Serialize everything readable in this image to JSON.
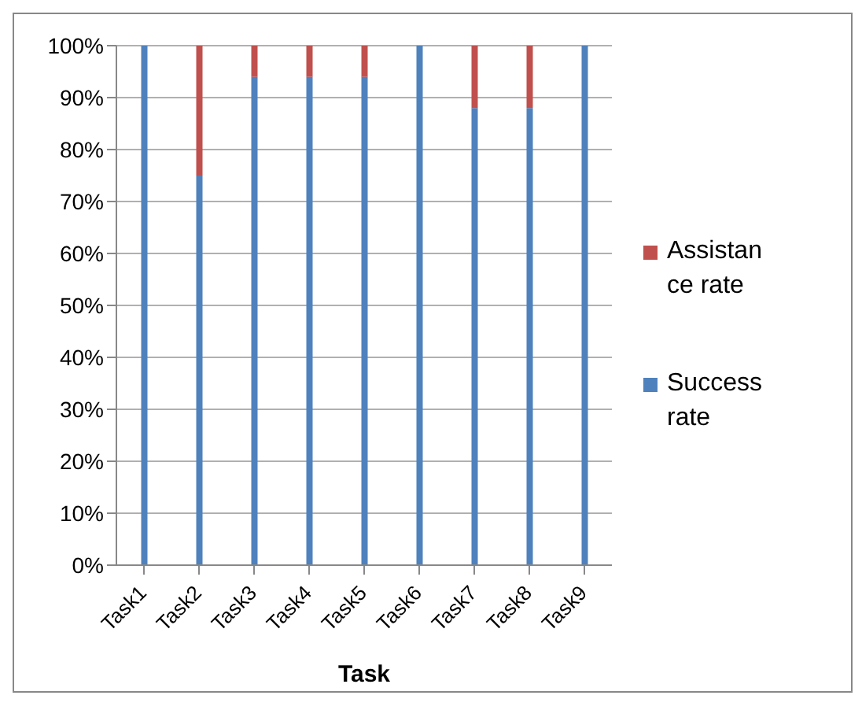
{
  "chart_data": {
    "type": "bar",
    "stacked": true,
    "xlabel": "Task",
    "categories": [
      "Task1",
      "Task2",
      "Task3",
      "Task4",
      "Task5",
      "Task6",
      "Task7",
      "Task8",
      "Task9"
    ],
    "series": [
      {
        "name": "Success rate",
        "color": "#4f81bd",
        "values": [
          100,
          75,
          94,
          94,
          94,
          100,
          88,
          88,
          100
        ]
      },
      {
        "name": "Assistance rate",
        "color": "#c0504d",
        "values": [
          0,
          25,
          6,
          6,
          6,
          0,
          12,
          12,
          0
        ]
      }
    ],
    "ylim": [
      0,
      100
    ],
    "yticks": [
      {
        "value": 0,
        "label": "0%"
      },
      {
        "value": 10,
        "label": "10%"
      },
      {
        "value": 20,
        "label": "20%"
      },
      {
        "value": 30,
        "label": "30%"
      },
      {
        "value": 40,
        "label": "40%"
      },
      {
        "value": 50,
        "label": "50%"
      },
      {
        "value": 60,
        "label": "60%"
      },
      {
        "value": 70,
        "label": "70%"
      },
      {
        "value": 80,
        "label": "80%"
      },
      {
        "value": 90,
        "label": "90%"
      },
      {
        "value": 100,
        "label": "100%"
      }
    ],
    "grid": "y",
    "legend": "right"
  }
}
